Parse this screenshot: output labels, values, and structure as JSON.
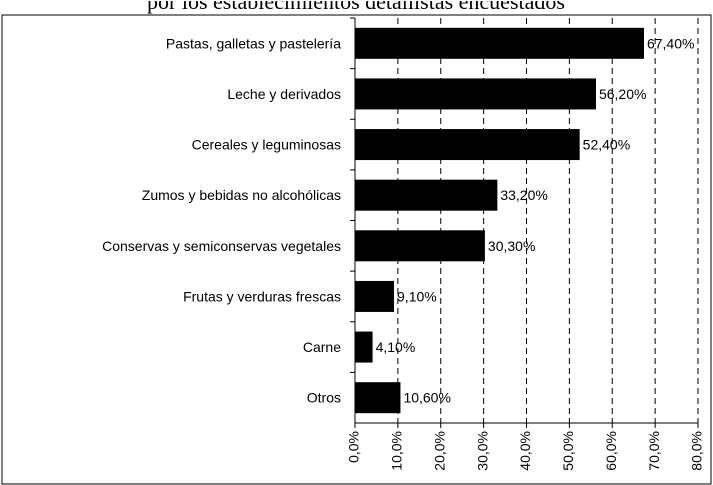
{
  "chart_data": {
    "type": "bar",
    "orientation": "horizontal",
    "title": "por los establecimientos detallistas encuestados",
    "categories": [
      "Pastas, galletas y pastelería",
      "Leche y derivados",
      "Cereales y leguminosas",
      "Zumos y bebidas no alcohólicas",
      "Conservas y semiconservas vegetales",
      "Frutas y verduras frescas",
      "Carne",
      "Otros"
    ],
    "values": [
      67.4,
      56.2,
      52.4,
      33.2,
      30.3,
      9.1,
      4.1,
      10.6
    ],
    "value_labels": [
      "67,40%",
      "56,20%",
      "52,40%",
      "33,20%",
      "30,30%",
      "9,10%",
      "4,10%",
      "10,60%"
    ],
    "color": "#000000",
    "xlim": [
      0,
      80
    ],
    "xticks": [
      {
        "value": 0,
        "label": "0,0%"
      },
      {
        "value": 10,
        "label": "10,0%"
      },
      {
        "value": 20,
        "label": "20,0%"
      },
      {
        "value": 30,
        "label": "30,0%"
      },
      {
        "value": 40,
        "label": "40,0%"
      },
      {
        "value": 50,
        "label": "50,0%"
      },
      {
        "value": 60,
        "label": "60,0%"
      },
      {
        "value": 70,
        "label": "70,0%"
      },
      {
        "value": 80,
        "label": "80,0%"
      }
    ],
    "grid": true
  }
}
